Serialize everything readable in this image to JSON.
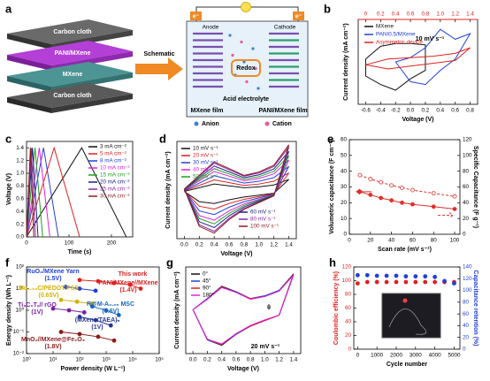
{
  "schematic": {
    "label": "a",
    "layers": [
      "Carbon cloth",
      "PANI/MXene",
      "MXene",
      "Carbon cloth"
    ],
    "arrow": "Schematic",
    "electrons": [
      "e⁻",
      "e⁻"
    ],
    "anode": "Anode",
    "cathode": "Cathode",
    "redox": "Redox",
    "electrolyte": "Acid electrolyte",
    "films": [
      "MXene film",
      "PANI/MXene film"
    ],
    "ions": [
      "Anion",
      "Cation"
    ]
  },
  "chart_data": [
    {
      "type": "line",
      "label": "b",
      "xlabel": "Voltage (V)",
      "ylabel": "Current density (mA cm⁻²)",
      "xlim": [
        -0.7,
        0.9
      ],
      "xticks": [
        -0.6,
        -0.4,
        -0.2,
        {
          "value": 0,
          "label": "0.0"
        },
        0.2,
        0.4,
        0.6,
        0.8
      ],
      "x2lim": [
        -0.1,
        1.5
      ],
      "x2ticks": [
        0,
        0.2,
        0.4,
        0.6,
        0.8,
        {
          "value": 1,
          "label": "1.0"
        },
        1.2,
        1.4
      ],
      "x2color": "#e02020",
      "ylim": [
        -3,
        3
      ],
      "annotations": [
        "10 mV s⁻¹"
      ],
      "series": [
        {
          "name": "MXene",
          "color": "#111111",
          "style": "line",
          "x": [
            -0.6,
            -0.4,
            -0.2,
            0,
            0.2,
            0.2,
            0,
            -0.2,
            -0.4,
            -0.6,
            -0.6
          ],
          "values": [
            0.2,
            1.1,
            1.3,
            1.3,
            1.2,
            -0.6,
            -1.2,
            -2.0,
            -1.6,
            -1.0,
            0.2
          ]
        },
        {
          "name": "PANI0.5/MXene",
          "color": "#2040d8",
          "style": "line",
          "x": [
            -0.2,
            0,
            0.2,
            0.4,
            0.6,
            0.8,
            0.6,
            0.4,
            0.2,
            0,
            -0.2
          ],
          "values": [
            0,
            0.3,
            1.0,
            2.3,
            1.6,
            2.0,
            0.2,
            -0.6,
            -1.6,
            -1.4,
            0
          ]
        },
        {
          "name": "Asymmetric device",
          "color": "#e02020",
          "style": "line",
          "axis": "x2",
          "x": [
            0,
            0.3,
            0.6,
            0.9,
            1.2,
            1.4,
            1.2,
            0.9,
            0.6,
            0.3,
            0
          ],
          "values": [
            -0.2,
            0.2,
            0.3,
            0.4,
            0.6,
            1.0,
            0.1,
            -0.1,
            -0.3,
            -0.5,
            -0.2
          ]
        }
      ]
    },
    {
      "type": "line",
      "label": "c",
      "xlabel": "Time (s)",
      "ylabel": "Voltage (V)",
      "xlim": [
        0,
        250
      ],
      "xticks": [
        0,
        100,
        200
      ],
      "ylim": [
        0,
        1.5
      ],
      "yticks": [
        {
          "value": 0,
          "label": "0.0"
        },
        0.2,
        0.4,
        0.6,
        0.8,
        {
          "value": 1,
          "label": "1.0"
        },
        1.2,
        1.4
      ],
      "series": [
        {
          "name": "3 mA cm⁻²",
          "color": "#111111",
          "style": "line",
          "x": [
            0,
            130,
            235
          ],
          "values": [
            0,
            1.4,
            0
          ]
        },
        {
          "name": "5 mA cm⁻²",
          "color": "#e02020",
          "style": "line",
          "x": [
            0,
            65,
            125
          ],
          "values": [
            0,
            1.4,
            0
          ]
        },
        {
          "name": "8 mA cm⁻²",
          "color": "#2040d8",
          "style": "line",
          "x": [
            0,
            40,
            75
          ],
          "values": [
            0,
            1.4,
            0
          ]
        },
        {
          "name": "10 mA cm⁻²",
          "color": "#e020e0",
          "style": "line",
          "x": [
            0,
            30,
            55
          ],
          "values": [
            0,
            1.4,
            0
          ]
        },
        {
          "name": "15 mA cm⁻²",
          "color": "#20a020",
          "style": "line",
          "x": [
            0,
            20,
            38
          ],
          "values": [
            0,
            1.4,
            0
          ]
        },
        {
          "name": "20 mA cm⁻²",
          "color": "#1a237e",
          "style": "line",
          "x": [
            0,
            14,
            27
          ],
          "values": [
            0,
            1.4,
            0
          ]
        },
        {
          "name": "25 mA cm⁻²",
          "color": "#8e24aa",
          "style": "line",
          "x": [
            0,
            11,
            21
          ],
          "values": [
            0,
            1.4,
            0
          ]
        },
        {
          "name": "30 mA cm⁻²",
          "color": "#8b1a1a",
          "style": "line",
          "x": [
            0,
            9,
            17
          ],
          "values": [
            0,
            1.4,
            0
          ]
        }
      ]
    },
    {
      "type": "line",
      "label": "d",
      "xlabel": "Voltage (V)",
      "ylabel": "Current density (mA cm⁻²)",
      "xlim": [
        -0.1,
        1.5
      ],
      "xticks": [
        {
          "value": 0,
          "label": "0.0"
        },
        0.2,
        0.4,
        0.6,
        0.8,
        {
          "value": 1,
          "label": "1.0"
        },
        1.2,
        1.4
      ],
      "ylim": [
        -3,
        3.3
      ],
      "x": [
        0,
        0.2,
        0.4,
        0.6,
        0.8,
        1.0,
        1.2,
        1.4,
        1.2,
        1.0,
        0.8,
        0.6,
        0.4,
        0.2,
        0
      ],
      "series": [
        {
          "name": "10 mV s⁻¹",
          "color": "#111111",
          "style": "line",
          "values": [
            0.06,
            0.3,
            0.54,
            0.42,
            0.3,
            0.36,
            0.48,
            0.84,
            -0.06,
            -0.18,
            -0.3,
            -0.48,
            -0.72,
            -0.6,
            0.06
          ]
        },
        {
          "name": "20 mV s⁻¹",
          "color": "#e02020",
          "style": "line",
          "values": [
            0.09,
            0.45,
            0.81,
            0.63,
            0.45,
            0.54,
            0.72,
            1.26,
            -0.09,
            -0.27,
            -0.45,
            -0.72,
            -1.08,
            -0.9,
            0.09
          ]
        },
        {
          "name": "30 mV s⁻¹",
          "color": "#2040d8",
          "style": "line",
          "values": [
            0.12,
            0.6,
            1.08,
            0.84,
            0.6,
            0.72,
            0.96,
            1.68,
            -0.12,
            -0.36,
            -0.6,
            -0.96,
            -1.44,
            -1.2,
            0.12
          ]
        },
        {
          "name": "40 mV s⁻¹",
          "color": "#e020e0",
          "style": "line",
          "values": [
            0.15,
            0.75,
            1.35,
            1.05,
            0.75,
            0.9,
            1.2,
            2.1,
            -0.15,
            -0.45,
            -0.75,
            -1.2,
            -1.8,
            -1.5,
            0.15
          ]
        },
        {
          "name": "50 mV s⁻¹",
          "color": "#20a020",
          "style": "line",
          "values": [
            0.17,
            0.85,
            1.53,
            1.19,
            0.85,
            1.02,
            1.36,
            2.38,
            -0.17,
            -0.51,
            -0.85,
            -1.36,
            -2.04,
            -1.7,
            0.17
          ]
        },
        {
          "name": "60 mV s⁻¹",
          "color": "#1a237e",
          "style": "line",
          "values": [
            0.19,
            0.95,
            1.71,
            1.33,
            0.95,
            1.14,
            1.52,
            2.66,
            -0.19,
            -0.57,
            -0.95,
            -1.52,
            -2.28,
            -1.9,
            0.19
          ]
        },
        {
          "name": "80 mV s⁻¹",
          "color": "#8e24aa",
          "style": "line",
          "values": [
            0.21,
            1.05,
            1.89,
            1.47,
            1.05,
            1.26,
            1.68,
            2.94,
            -0.21,
            -0.63,
            -1.05,
            -1.68,
            -2.52,
            -2.1,
            0.21
          ]
        },
        {
          "name": "100 mV s⁻¹",
          "color": "#8b1a1a",
          "style": "line",
          "values": [
            0.22,
            1.1,
            1.98,
            1.54,
            1.1,
            1.32,
            1.76,
            3.08,
            -0.22,
            -0.66,
            -1.1,
            -1.76,
            -2.64,
            -2.2,
            0.22
          ]
        }
      ]
    },
    {
      "type": "line",
      "label": "e",
      "xlabel": "Scan rate (mV s⁻¹)",
      "ylabel": "Volumetric capacitance (F cm⁻³)",
      "y2label": "Specific Capacitance (F g⁻¹)",
      "xlim": [
        0,
        105
      ],
      "xticks": [
        0,
        20,
        40,
        60,
        80,
        100
      ],
      "ylim": [
        0,
        60
      ],
      "yticks": [
        0,
        10,
        20,
        30,
        40,
        50,
        60
      ],
      "y2lim": [
        0,
        120
      ],
      "y2ticks": [
        0,
        20,
        40,
        60,
        80,
        100,
        120
      ],
      "x": [
        10,
        20,
        30,
        40,
        50,
        60,
        80,
        100
      ],
      "series": [
        {
          "color": "#e0302a",
          "style": "line+markers",
          "values": [
            27,
            25,
            23,
            21.5,
            20,
            19,
            17.5,
            16
          ]
        },
        {
          "color": "#e0302a",
          "style": "line+markers",
          "dash": true,
          "open": true,
          "axis": "y2",
          "values": [
            75,
            70,
            66,
            62,
            59,
            56,
            52,
            48
          ]
        }
      ]
    },
    {
      "type": "line",
      "label": "f",
      "xlabel": "Power density (W L⁻¹)",
      "ylabel": "Energy density (Wh L⁻¹)",
      "xlog": true,
      "ylog": true,
      "xlim": [
        1,
        100000
      ],
      "xticks": [
        {
          "value": 1,
          "label": "10⁰"
        },
        {
          "value": 10,
          "label": "10¹"
        },
        {
          "value": 100,
          "label": "10²"
        },
        {
          "value": 1000,
          "label": "10³"
        },
        {
          "value": 10000,
          "label": "10⁴"
        },
        {
          "value": 100000,
          "label": "10⁵"
        }
      ],
      "ylim": [
        0.01,
        100
      ],
      "yticks": [
        {
          "value": 0.01,
          "label": "10⁻²"
        },
        {
          "value": 0.1,
          "label": "10⁻¹"
        },
        {
          "value": 1,
          "label": "10⁰"
        },
        {
          "value": 10,
          "label": "10¹"
        },
        {
          "value": 100,
          "label": "10²"
        }
      ],
      "annotations": [
        "This work"
      ],
      "series": [
        {
          "name": "PANI/MXene//MXene",
          "sub": "(1.4V)",
          "color": "#e02020",
          "style": "line+markers",
          "x": [
            100,
            500,
            2000,
            8000,
            20000
          ],
          "values": [
            25,
            22,
            18,
            15,
            10
          ]
        },
        {
          "name": "RuO₂/MXene Yarn",
          "sub": "(1.5V)",
          "color": "#2040d8",
          "style": "line+markers",
          "x": [
            30,
            100,
            400
          ],
          "values": [
            12,
            10,
            8
          ]
        },
        {
          "name": "Mo₁.₃₃C/PEDOT:PSS",
          "sub": "(0.65V)",
          "color": "#d4b000",
          "style": "line+markers",
          "x": [
            20,
            80,
            300
          ],
          "values": [
            3,
            2.5,
            2
          ]
        },
        {
          "name": "Ti₃C₂Tₓ// rGO",
          "sub": "(1V)",
          "color": "#7b1fa2",
          "style": "line+markers",
          "x": [
            10,
            40,
            150
          ],
          "values": [
            1.2,
            1.0,
            0.8
          ]
        },
        {
          "name": "R@M-A₀.₂₅ MSC",
          "sub": "(0.6V)",
          "color": "#1565c0",
          "style": "line+markers",
          "x": [
            300,
            1000,
            3000
          ],
          "values": [
            1.5,
            1.0,
            0.6
          ]
        },
        {
          "name": "(MXene/TAEA)ₙ",
          "sub": "(1V)",
          "color": "#283593",
          "style": "line+markers",
          "x": [
            100,
            400,
            1500
          ],
          "values": [
            0.5,
            0.35,
            0.2
          ]
        },
        {
          "name": "MnO₂//MXene@Fe₂O₃",
          "sub": "(1.8V)",
          "color": "#8b1a1a",
          "style": "line+markers",
          "x": [
            20,
            100,
            500,
            2000
          ],
          "values": [
            0.1,
            0.08,
            0.06,
            0.04
          ]
        }
      ]
    },
    {
      "type": "line",
      "label": "g",
      "xlabel": "Voltage (V)",
      "ylabel": "Current density (mA cm⁻²)",
      "xlim": [
        -0.1,
        1.5
      ],
      "xticks": [
        {
          "value": 0,
          "label": "0.0"
        },
        0.2,
        0.4,
        0.6,
        0.8,
        {
          "value": 1,
          "label": "1.0"
        },
        1.2,
        1.4
      ],
      "ylim": [
        -3,
        3.3
      ],
      "annotations": [
        "20 mV s⁻¹",
        "θ"
      ],
      "x": [
        0,
        0.2,
        0.4,
        0.6,
        0.8,
        1.0,
        1.2,
        1.4,
        1.2,
        1.0,
        0.8,
        0.6,
        0.4,
        0.2,
        0
      ],
      "series": [
        {
          "name": "0°",
          "color": "#111111",
          "style": "line",
          "values": [
            0.2,
            1.0,
            1.9,
            1.5,
            1.0,
            1.2,
            1.6,
            2.8,
            -0.2,
            -0.6,
            -1.0,
            -1.6,
            -2.4,
            -2.0,
            0.2
          ]
        },
        {
          "name": "45°",
          "color": "#2040d8",
          "style": "line",
          "values": [
            0.2,
            1.0,
            1.85,
            1.5,
            1.0,
            1.2,
            1.6,
            2.75,
            -0.2,
            -0.6,
            -1.0,
            -1.6,
            -2.35,
            -2.0,
            0.2
          ]
        },
        {
          "name": "90°",
          "color": "#e02020",
          "style": "line",
          "values": [
            0.2,
            0.95,
            1.85,
            1.45,
            1.0,
            1.15,
            1.55,
            2.75,
            -0.2,
            -0.6,
            -1.0,
            -1.55,
            -2.35,
            -1.95,
            0.2
          ]
        },
        {
          "name": "180°",
          "color": "#e020e0",
          "style": "line",
          "values": [
            0.2,
            0.95,
            1.8,
            1.45,
            0.95,
            1.15,
            1.55,
            2.7,
            -0.2,
            -0.55,
            -0.95,
            -1.55,
            -2.3,
            -1.95,
            0.2
          ]
        }
      ]
    },
    {
      "type": "scatter",
      "label": "h",
      "xlabel": "Cycle number",
      "ylabel": "Coulombic efficiency (%)",
      "y2label": "Capacitance retention (%)",
      "xlim": [
        -200,
        5300
      ],
      "xticks": [
        0,
        1000,
        2000,
        3000,
        4000,
        5000
      ],
      "ylim": [
        0,
        120
      ],
      "yticks": [
        0,
        20,
        40,
        60,
        80,
        100,
        120
      ],
      "ycolor": "#e02020",
      "y2lim": [
        0,
        140
      ],
      "y2ticks": [
        0,
        20,
        40,
        60,
        80,
        100,
        120,
        140
      ],
      "y2color": "#2040d8",
      "x": [
        0,
        500,
        1000,
        1500,
        2000,
        2500,
        3000,
        3500,
        4000,
        4500,
        5000
      ],
      "series": [
        {
          "color": "#e02020",
          "style": "markers",
          "values": [
            96,
            98,
            98,
            98,
            98,
            98,
            98,
            98,
            98,
            98,
            98
          ]
        },
        {
          "color": "#2040d8",
          "style": "markers",
          "axis": "y2",
          "values": [
            126,
            126,
            125,
            125,
            125,
            124,
            124,
            124,
            123,
            116,
            112
          ]
        }
      ]
    }
  ]
}
